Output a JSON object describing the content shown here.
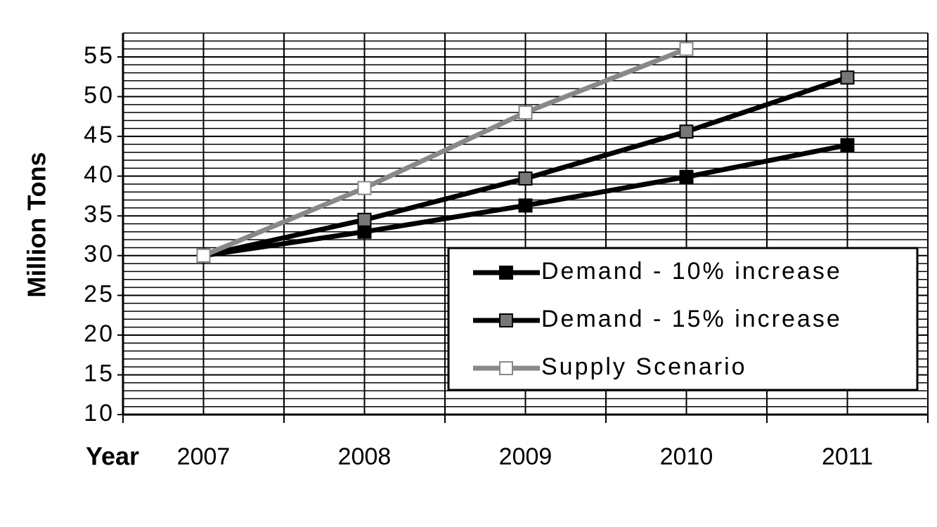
{
  "chart_data": {
    "type": "line",
    "y_label": "Million Tons",
    "x_label": "Year",
    "categories": [
      "2007",
      "2008",
      "2009",
      "2010",
      "2011"
    ],
    "series": [
      {
        "name": "Demand - 10% increase",
        "color": "#000000",
        "marker_color": "#000000",
        "values": [
          30,
          33,
          36.3,
          39.9,
          43.9
        ]
      },
      {
        "name": "Demand - 15% increase",
        "color": "#000000",
        "marker_color": "#777777",
        "values": [
          30,
          34.5,
          39.7,
          45.6,
          52.4
        ]
      },
      {
        "name": "Supply Scenario",
        "color": "#888888",
        "marker_color": "#ffffff",
        "values": [
          30,
          38.5,
          48,
          56,
          null
        ]
      }
    ],
    "ylim": [
      10,
      58
    ],
    "yticks": [
      10,
      15,
      20,
      25,
      30,
      35,
      40,
      45,
      50,
      55
    ],
    "grid": true,
    "minor_grid": 1,
    "legend": "lower right"
  }
}
